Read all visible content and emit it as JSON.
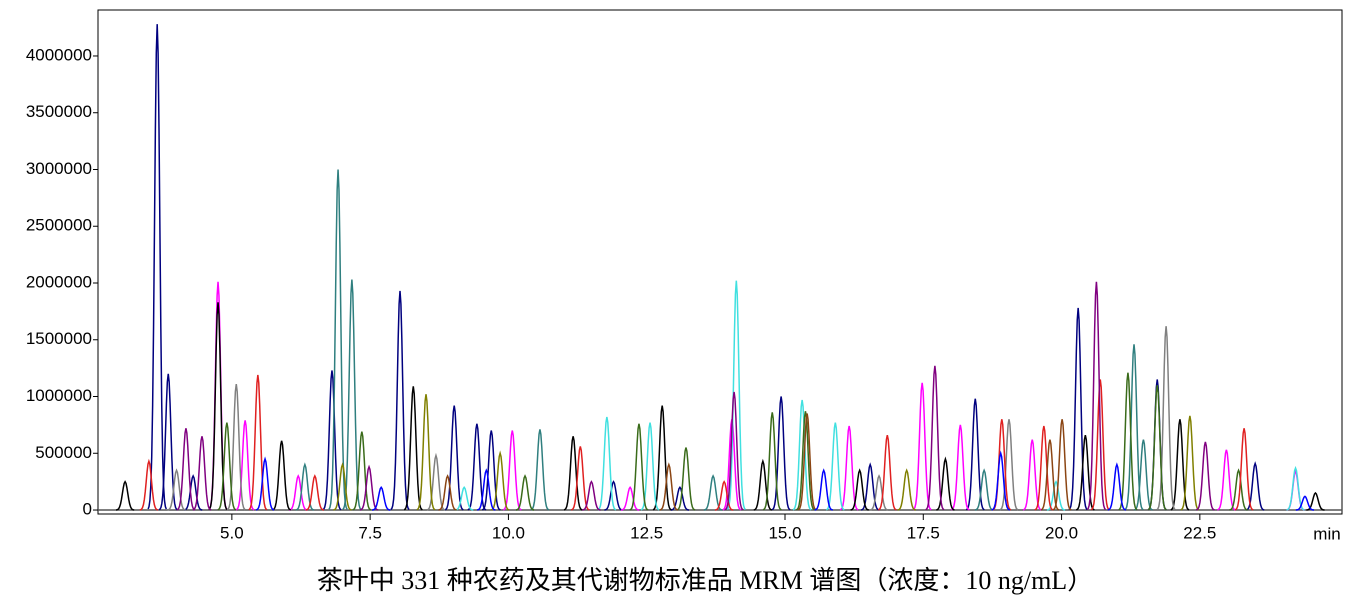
{
  "chart_data": {
    "type": "peaks",
    "title": "茶叶中 331 种农药及其代谢物标准品 MRM 谱图（浓度：10 ng/mL）",
    "x_label": "min",
    "xlim": [
      2.58,
      25.07
    ],
    "xticks": [
      {
        "value": 5,
        "label": "5.0"
      },
      {
        "value": 7.5,
        "label": "7.5"
      },
      {
        "value": 10,
        "label": "10.0"
      },
      {
        "value": 12.5,
        "label": "12.5"
      },
      {
        "value": 15,
        "label": "15.0"
      },
      {
        "value": 17.5,
        "label": "17.5"
      },
      {
        "value": 20,
        "label": "20.0"
      },
      {
        "value": 22.5,
        "label": "22.5"
      }
    ],
    "ylim": [
      -35000,
      4405000
    ],
    "yticks": [
      0,
      500000,
      1000000,
      1500000,
      2000000,
      2500000,
      3000000,
      3500000,
      4000000
    ],
    "series": [
      {
        "color": "#00007f",
        "x": [
          3.65,
          3.85,
          6.81,
          8.04,
          9.02,
          9.43,
          9.69,
          14.93,
          16.54,
          18.44,
          20.3,
          21.73,
          23.5,
          4.3,
          11.9,
          13.1
        ],
        "values": [
          4280000,
          1200000,
          1230000,
          1930000,
          920000,
          760000,
          700000,
          1000000,
          400000,
          980000,
          1780000,
          1150000,
          410000,
          300000,
          250000,
          200000
        ]
      },
      {
        "color": "#ff00ff",
        "x": [
          4.75,
          5.24,
          10.07,
          14.04,
          16.16,
          17.48,
          18.17,
          19.47,
          22.98,
          24.23,
          6.2,
          12.2
        ],
        "values": [
          2010000,
          790000,
          700000,
          800000,
          740000,
          1120000,
          750000,
          620000,
          530000,
          340000,
          300000,
          200000
        ]
      },
      {
        "color": "#000000",
        "x": [
          3.07,
          4.75,
          8.28,
          11.17,
          12.78,
          16.35,
          20.43,
          22.14,
          24.59,
          5.9,
          14.6,
          17.9
        ],
        "values": [
          250000,
          1830000,
          1090000,
          650000,
          920000,
          350000,
          660000,
          800000,
          150000,
          610000,
          430000,
          450000
        ]
      },
      {
        "color": "#2f7f7f",
        "x": [
          6.32,
          6.92,
          7.17,
          10.57,
          21.31,
          21.48,
          13.7,
          18.6
        ],
        "values": [
          400000,
          3000000,
          2030000,
          710000,
          1460000,
          620000,
          300000,
          350000
        ]
      },
      {
        "color": "#40e0e0",
        "x": [
          11.78,
          12.56,
          14.12,
          15.31,
          15.91,
          24.23,
          9.2,
          19.9
        ],
        "values": [
          820000,
          770000,
          2020000,
          970000,
          770000,
          370000,
          200000,
          250000
        ]
      },
      {
        "color": "#808080",
        "x": [
          5.08,
          8.69,
          19.05,
          21.89,
          4.0,
          16.7
        ],
        "values": [
          1110000,
          480000,
          800000,
          1620000,
          350000,
          300000
        ]
      },
      {
        "color": "#3a6b1a",
        "x": [
          4.91,
          7.35,
          12.36,
          13.21,
          14.77,
          15.37,
          21.2,
          21.73,
          10.3,
          23.2
        ],
        "values": [
          770000,
          690000,
          760000,
          550000,
          860000,
          870000,
          1210000,
          1100000,
          300000,
          350000
        ]
      },
      {
        "color": "#e02020",
        "x": [
          3.5,
          5.47,
          11.3,
          16.85,
          18.92,
          19.68,
          20.7,
          23.3,
          6.5,
          13.9
        ],
        "values": [
          430000,
          1190000,
          560000,
          660000,
          800000,
          740000,
          1150000,
          720000,
          300000,
          250000
        ]
      },
      {
        "color": "#808000",
        "x": [
          8.51,
          9.85,
          22.32,
          7.0,
          17.2
        ],
        "values": [
          1020000,
          500000,
          830000,
          400000,
          350000
        ]
      },
      {
        "color": "#800080",
        "x": [
          4.17,
          4.46,
          7.48,
          14.08,
          17.71,
          20.63,
          11.5,
          22.6
        ],
        "values": [
          720000,
          650000,
          380000,
          1040000,
          1270000,
          2010000,
          250000,
          600000
        ]
      },
      {
        "color": "#8b4513",
        "x": [
          15.4,
          19.79,
          20.01,
          8.9,
          12.9
        ],
        "values": [
          850000,
          620000,
          800000,
          300000,
          400000
        ]
      },
      {
        "color": "#0000ff",
        "x": [
          5.6,
          7.7,
          9.6,
          15.7,
          18.9,
          21.0,
          24.4
        ],
        "values": [
          450000,
          200000,
          350000,
          350000,
          500000,
          400000,
          120000
        ]
      }
    ]
  }
}
